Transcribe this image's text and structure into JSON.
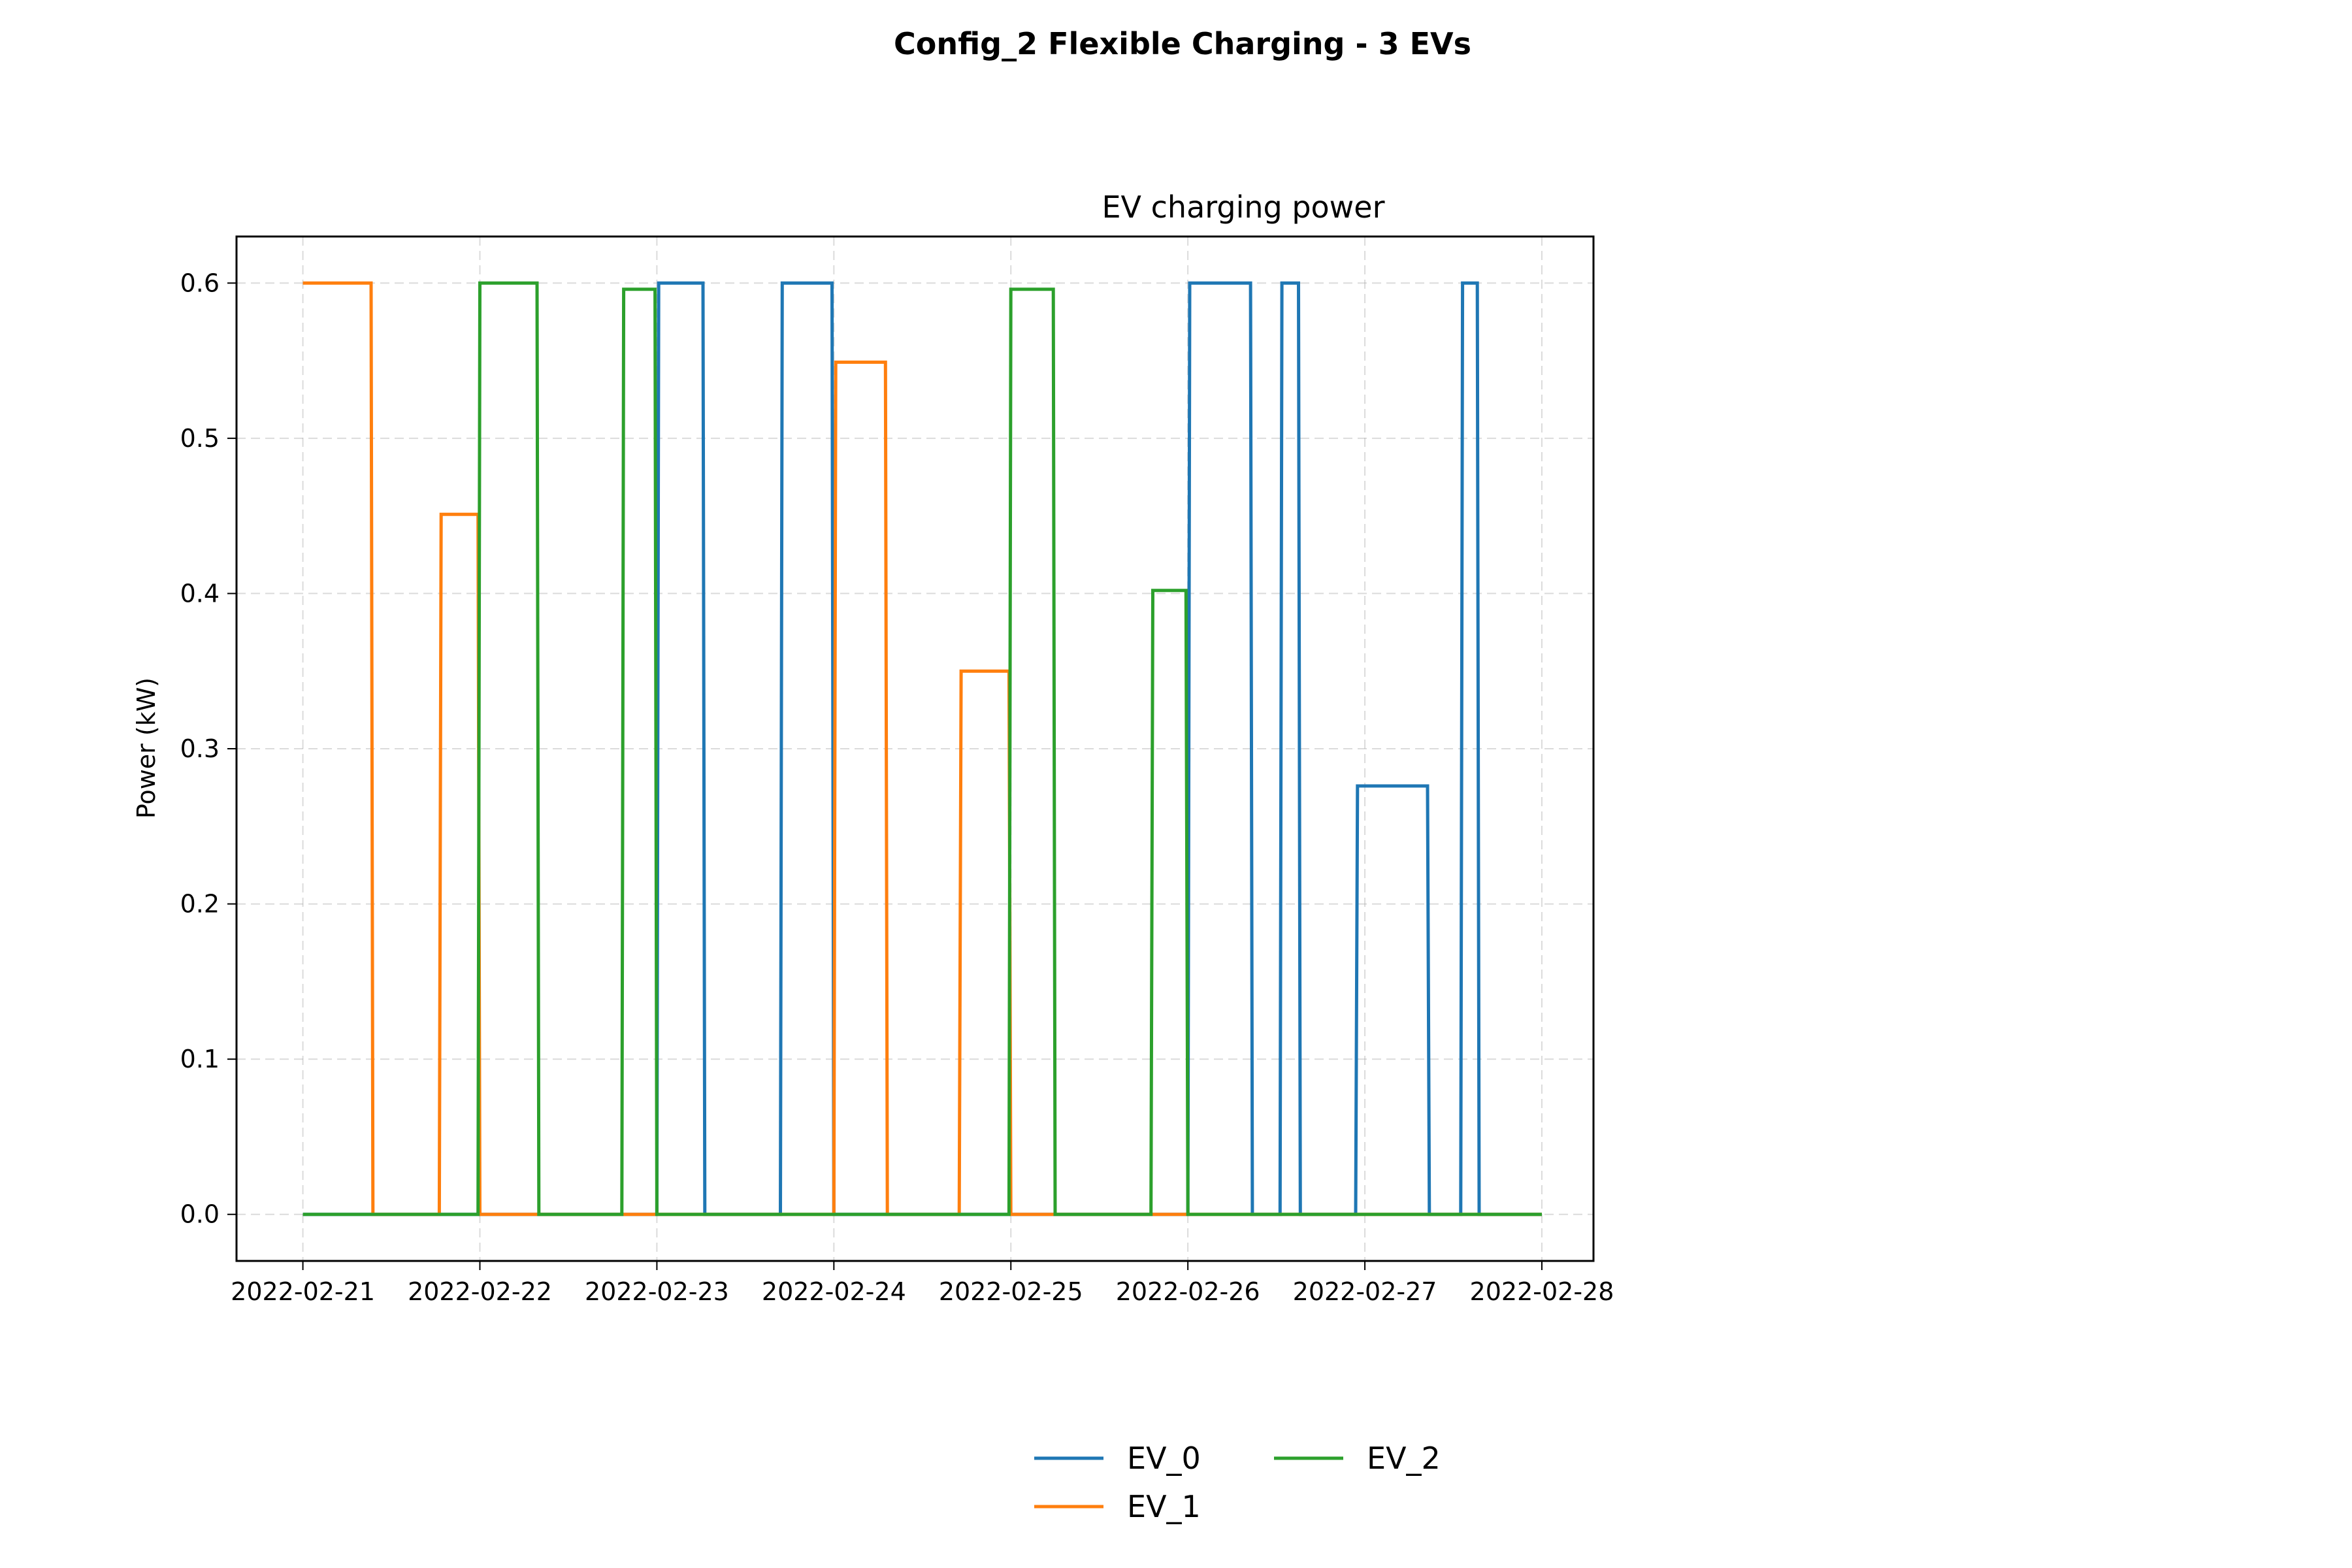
{
  "suptitle": "Config_2 Flexible Charging - 3 EVs",
  "chart_data": {
    "type": "line",
    "title": "EV charging power",
    "xlabel": "",
    "ylabel": "Power (kW)",
    "x_type": "date",
    "xlim": [
      "2022-02-20T15:00",
      "2022-02-28T07:00"
    ],
    "ylim": [
      -0.03,
      0.63
    ],
    "x_ticks": [
      "2022-02-21",
      "2022-02-22",
      "2022-02-23",
      "2022-02-24",
      "2022-02-25",
      "2022-02-26",
      "2022-02-27",
      "2022-02-28"
    ],
    "y_ticks": [
      0.0,
      0.1,
      0.2,
      0.3,
      0.4,
      0.5,
      0.6
    ],
    "y_tick_labels": [
      "0.0",
      "0.1",
      "0.2",
      "0.3",
      "0.4",
      "0.5",
      "0.6"
    ],
    "grid": true,
    "legend_position": "bottom-center",
    "series": [
      {
        "name": "EV_0",
        "color": "#1f77b4",
        "points": [
          [
            "2022-02-21T00:00",
            0
          ],
          [
            "2022-02-23T00:00",
            0
          ],
          [
            "2022-02-23T00:15",
            0.6
          ],
          [
            "2022-02-23T06:15",
            0.6
          ],
          [
            "2022-02-23T06:30",
            0
          ],
          [
            "2022-02-23T16:45",
            0
          ],
          [
            "2022-02-23T17:00",
            0.6
          ],
          [
            "2022-02-23T23:45",
            0.6
          ],
          [
            "2022-02-24T00:00",
            0
          ],
          [
            "2022-02-26T00:00",
            0
          ],
          [
            "2022-02-26T00:15",
            0.6
          ],
          [
            "2022-02-26T08:30",
            0.6
          ],
          [
            "2022-02-26T08:45",
            0
          ],
          [
            "2022-02-26T12:30",
            0
          ],
          [
            "2022-02-26T12:45",
            0.6
          ],
          [
            "2022-02-26T15:00",
            0.6
          ],
          [
            "2022-02-26T15:15",
            0
          ],
          [
            "2022-02-26T22:45",
            0
          ],
          [
            "2022-02-26T23:00",
            0.276
          ],
          [
            "2022-02-27T08:30",
            0.276
          ],
          [
            "2022-02-27T08:45",
            0
          ],
          [
            "2022-02-27T13:00",
            0
          ],
          [
            "2022-02-27T13:15",
            0.6
          ],
          [
            "2022-02-27T15:15",
            0.6
          ],
          [
            "2022-02-27T15:30",
            0
          ],
          [
            "2022-02-28T00:00",
            0
          ]
        ]
      },
      {
        "name": "EV_1",
        "color": "#ff7f0e",
        "points": [
          [
            "2022-02-21T00:00",
            0.6
          ],
          [
            "2022-02-21T09:15",
            0.6
          ],
          [
            "2022-02-21T09:30",
            0
          ],
          [
            "2022-02-21T18:30",
            0
          ],
          [
            "2022-02-21T18:45",
            0.451
          ],
          [
            "2022-02-21T23:45",
            0.451
          ],
          [
            "2022-02-22T00:00",
            0
          ],
          [
            "2022-02-24T00:00",
            0
          ],
          [
            "2022-02-24T00:15",
            0.549
          ],
          [
            "2022-02-24T07:00",
            0.549
          ],
          [
            "2022-02-24T07:15",
            0
          ],
          [
            "2022-02-24T17:00",
            0
          ],
          [
            "2022-02-24T17:15",
            0.35
          ],
          [
            "2022-02-24T23:45",
            0.35
          ],
          [
            "2022-02-25T00:00",
            0
          ],
          [
            "2022-02-28T00:00",
            0
          ]
        ]
      },
      {
        "name": "EV_2",
        "color": "#2ca02c",
        "points": [
          [
            "2022-02-21T00:00",
            0
          ],
          [
            "2022-02-21T23:45",
            0
          ],
          [
            "2022-02-22T00:00",
            0.6
          ],
          [
            "2022-02-22T07:45",
            0.6
          ],
          [
            "2022-02-22T08:00",
            0
          ],
          [
            "2022-02-22T19:15",
            0
          ],
          [
            "2022-02-22T19:30",
            0.596
          ],
          [
            "2022-02-22T23:45",
            0.596
          ],
          [
            "2022-02-23T00:00",
            0
          ],
          [
            "2022-02-24T23:45",
            0
          ],
          [
            "2022-02-25T00:00",
            0.596
          ],
          [
            "2022-02-25T05:45",
            0.596
          ],
          [
            "2022-02-25T06:00",
            0
          ],
          [
            "2022-02-25T19:00",
            0
          ],
          [
            "2022-02-25T19:15",
            0.402
          ],
          [
            "2022-02-25T23:45",
            0.402
          ],
          [
            "2022-02-26T00:00",
            0
          ],
          [
            "2022-02-28T00:00",
            0
          ]
        ]
      }
    ]
  }
}
